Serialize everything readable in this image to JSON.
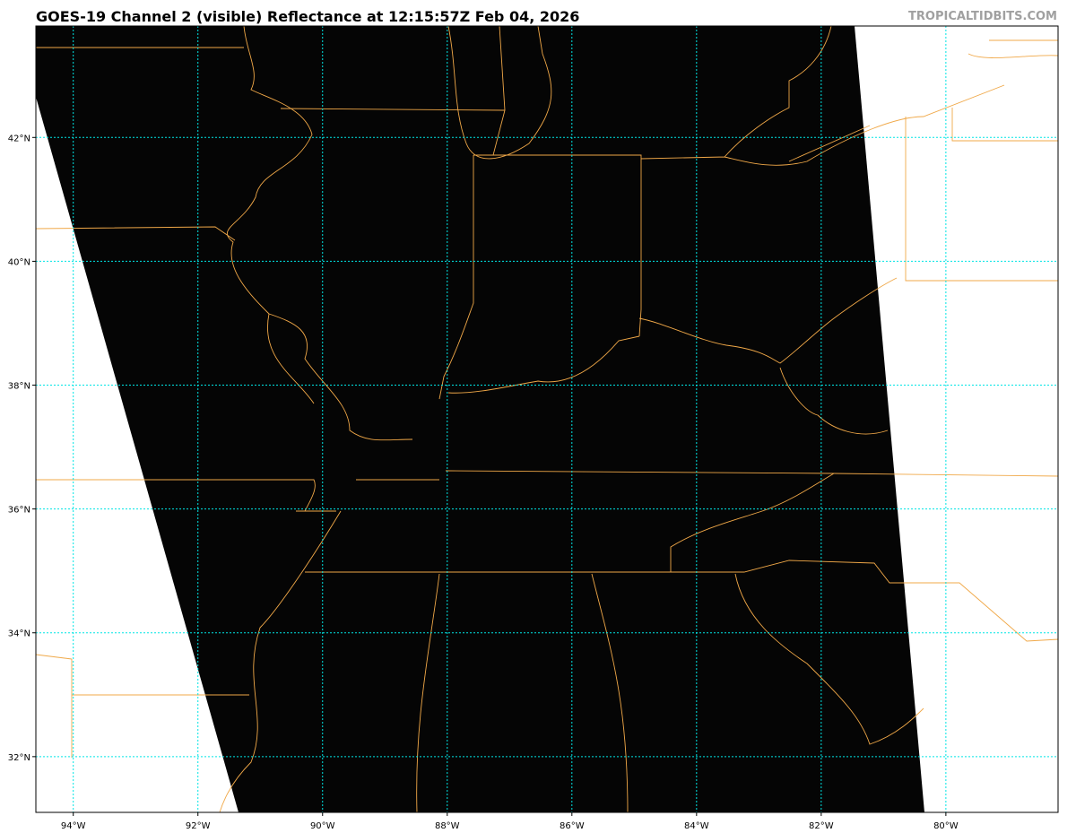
{
  "title": "GOES-19 Channel 2 (visible) Reflectance at 12:15:57Z Feb 04, 2026",
  "credit": "TROPICALTIDBITS.COM",
  "map": {
    "lon_labels": [
      "94°W",
      "92°W",
      "90°W",
      "88°W",
      "86°W",
      "84°W",
      "82°W",
      "80°W"
    ],
    "lat_labels": [
      "42°N",
      "40°N",
      "38°N",
      "36°N",
      "34°N",
      "32°N"
    ],
    "lons": [
      -94,
      -92,
      -90,
      -88,
      -86,
      -84,
      -82,
      -80
    ],
    "lats": [
      42,
      40,
      38,
      36,
      34,
      32
    ],
    "extent": {
      "lon": [
        -94.6,
        -78.2
      ],
      "lat": [
        31.1,
        43.8
      ]
    },
    "colors": {
      "imagery": "#050505",
      "borders": "#f0a848",
      "grid": "#00e5e5"
    }
  }
}
